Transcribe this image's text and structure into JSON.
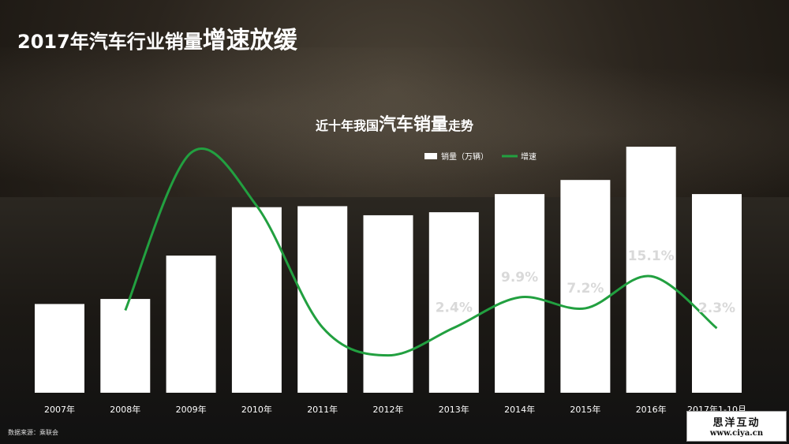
{
  "header": {
    "title_part1": "2017年汽车行业销量",
    "title_part2": "增速放缓"
  },
  "chart_header": {
    "title_part1": "近十年我国",
    "title_part2": "汽车销量",
    "title_part3": "走势"
  },
  "footer": {
    "source": "数据来源：乘联会"
  },
  "watermark": {
    "line1": "思洋互动",
    "line2": "www.ciya.cn"
  },
  "chart_data": {
    "type": "bar",
    "title": "近十年我国汽车销量走势",
    "categories": [
      "2007年",
      "2008年",
      "2009年",
      "2010年",
      "2011年",
      "2012年",
      "2013年",
      "2014年",
      "2015年",
      "2016年",
      "2017年1-10月"
    ],
    "series": [
      {
        "name": "销量（万辆）",
        "type": "bar",
        "color": "#ffffff",
        "values": [
          880,
          930,
          1360,
          1840,
          1850,
          1760,
          1790,
          1970,
          2110,
          2440,
          1970
        ]
      },
      {
        "name": "增速",
        "type": "line",
        "color": "#22a040",
        "values": [
          null,
          6.7,
          45.5,
          32.4,
          2.5,
          -4.4,
          2.4,
          9.9,
          7.2,
          15.1,
          2.3
        ]
      }
    ],
    "data_labels": [
      {
        "index": 6,
        "text": "2.4%"
      },
      {
        "index": 7,
        "text": "9.9%"
      },
      {
        "index": 8,
        "text": "7.2%"
      },
      {
        "index": 9,
        "text": "15.1%"
      },
      {
        "index": 10,
        "text": "2.3%"
      }
    ],
    "legend": {
      "position": "top-right"
    },
    "grid": false
  }
}
